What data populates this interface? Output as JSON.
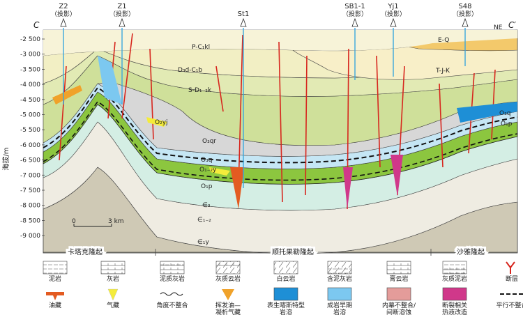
{
  "section": {
    "left_end": "C",
    "right_end": "C′",
    "direction": "NE"
  },
  "wells": [
    {
      "name": "Z2",
      "note": "（投影）"
    },
    {
      "name": "Z1",
      "note": "（投影）"
    },
    {
      "name": "St1",
      "note": ""
    },
    {
      "name": "SB1-1",
      "note": "（投影）"
    },
    {
      "name": "Yj1",
      "note": "（投影）"
    },
    {
      "name": "S48",
      "note": "（投影）"
    }
  ],
  "y_axis": {
    "label": "海拔/m",
    "ticks": [
      "-2 500",
      "-3 000",
      "-3 500",
      "-4 000",
      "-4 500",
      "-5 000",
      "-5 500",
      "-6 000",
      "-6 500",
      "-7 000",
      "-7 500",
      "-8 000",
      "-8 500",
      "-9 000"
    ]
  },
  "strata_labels": {
    "pc": "P-C₁kl",
    "dc": "D₃d-C₁b",
    "sd": "S-D₁₋₂k",
    "eq": "E-Q",
    "tjk": "T-J-K",
    "o3qr": "O₃qr",
    "o2yj": "O₂yj",
    "o3q": "O₃q",
    "o12y": "O₁₋₂y",
    "o1p": "O₁p",
    "e3": "∈₃",
    "e12": "∈₁₋₂",
    "e1y": "∈₁y",
    "o3q_r": "O₃q",
    "o1p_r": "O₁p"
  },
  "scale_bar": {
    "start": "0",
    "end": "3 km"
  },
  "uplifts": [
    "卡塔克隆起",
    "顺托果勒隆起",
    "沙雅隆起"
  ],
  "legend": [
    {
      "key": "mudstone",
      "label": "泥岩"
    },
    {
      "key": "limestone",
      "label": "灰岩"
    },
    {
      "key": "argillaceous-limestone",
      "label": "泥质灰岩"
    },
    {
      "key": "limy-dolomite",
      "label": "灰质云岩"
    },
    {
      "key": "dolomite",
      "label": "白云岩"
    },
    {
      "key": "muddy-limestone",
      "label": "含泥灰岩"
    },
    {
      "key": "gypsum-rock",
      "label": "膏云岩"
    },
    {
      "key": "limy-mudstone",
      "label": "灰质泥岩"
    },
    {
      "key": "fault",
      "label": "断层"
    },
    {
      "key": "oil-reservoir",
      "label": "油藏"
    },
    {
      "key": "gas-reservoir",
      "label": "气藏"
    },
    {
      "key": "angular-unconformity",
      "label": "角度不整合"
    },
    {
      "key": "volatile-oil-condensate",
      "label": "挥发油—凝析气藏"
    },
    {
      "key": "epigenetic-karst",
      "label": "表生喀斯特型岩溶"
    },
    {
      "key": "early-diagenetic-karst",
      "label": "成岩早期岩溶"
    },
    {
      "key": "interlayer-karst",
      "label": "内幕不整合/间断溶蚀"
    },
    {
      "key": "fault-hydrothermal",
      "label": "断裂相关热液改造"
    },
    {
      "key": "parallel-unconformity",
      "label": "平行不整合"
    }
  ],
  "colors": {
    "eq": "#f3c96b",
    "tjk": "#f8efc8",
    "pc": "#f2efc4",
    "dc": "#e2eab4",
    "sd": "#cfe09a",
    "o3qr": "#d7d7d7",
    "o3q": "#c5e6f4",
    "o2yj": "#a9d8ee",
    "o12y": "#8cc63f",
    "o1p": "#d4eee4",
    "cam": "#efece2",
    "deep": "#cfc9b5",
    "fault": "#d7261e",
    "well": "#3aa7dd",
    "oil": "#e35b21",
    "gas": "#f4ec3b",
    "volatile": "#f0a22a",
    "epikarst": "#1e8fd6",
    "earlykarst": "#7cc8f0",
    "interkarst": "#e49c9a",
    "hydro": "#d0388a"
  }
}
